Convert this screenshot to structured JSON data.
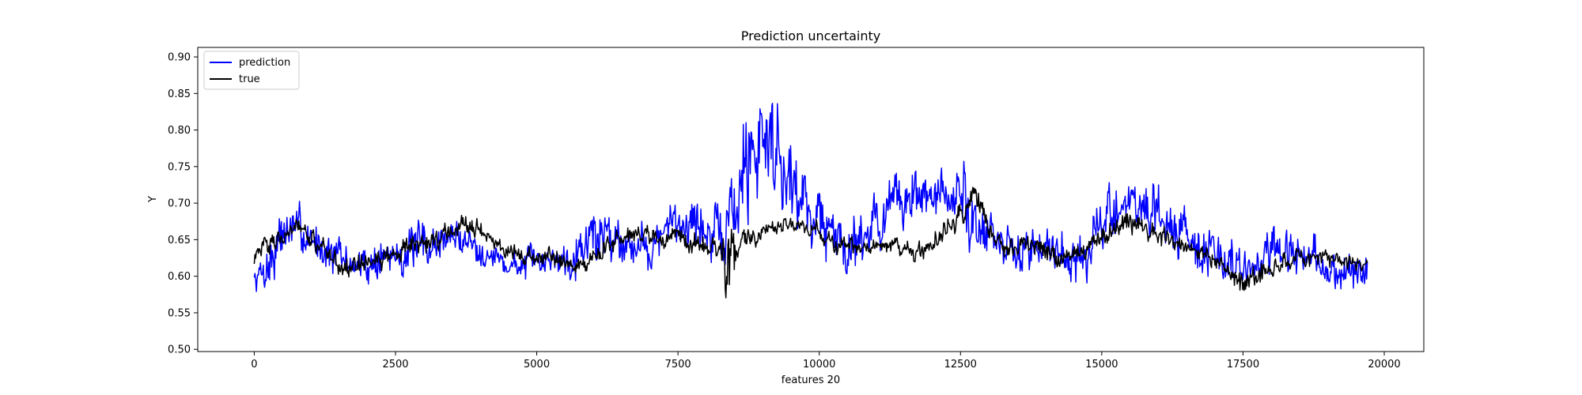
{
  "chart_data": {
    "type": "line",
    "title": "Prediction uncertainty",
    "xlabel": "features 20",
    "ylabel": "Y",
    "xlim": [
      -1000,
      20700
    ],
    "ylim": [
      0.497,
      0.913
    ],
    "xticks": [
      0,
      2500,
      5000,
      7500,
      10000,
      12500,
      15000,
      17500,
      20000
    ],
    "xtick_labels": [
      "0",
      "2500",
      "5000",
      "7500",
      "10000",
      "12500",
      "15000",
      "17500",
      "20000"
    ],
    "yticks": [
      0.5,
      0.55,
      0.6,
      0.65,
      0.7,
      0.75,
      0.8,
      0.85,
      0.9
    ],
    "ytick_labels": [
      "0.50",
      "0.55",
      "0.60",
      "0.65",
      "0.70",
      "0.75",
      "0.80",
      "0.85",
      "0.90"
    ],
    "grid": false,
    "legend_position": "top-left",
    "series": [
      {
        "name": "prediction",
        "color": "#0000ff",
        "x": [
          0,
          250,
          500,
          750,
          1000,
          1250,
          1500,
          1750,
          2000,
          2250,
          2500,
          2750,
          3000,
          3250,
          3500,
          3750,
          4000,
          4250,
          4500,
          4750,
          5000,
          5250,
          5500,
          5750,
          6000,
          6250,
          6500,
          6750,
          7000,
          7250,
          7500,
          7750,
          8000,
          8250,
          8500,
          8750,
          9000,
          9250,
          9500,
          9750,
          10000,
          10250,
          10500,
          10750,
          11000,
          11250,
          11500,
          11750,
          12000,
          12250,
          12500,
          12750,
          13000,
          13250,
          13500,
          13750,
          14000,
          14250,
          14500,
          14750,
          15000,
          15250,
          15500,
          15750,
          16000,
          16250,
          16500,
          16750,
          17000,
          17250,
          17500,
          17750,
          18000,
          18250,
          18500,
          18750,
          19000,
          19250,
          19500,
          19700
        ],
        "y": [
          0.595,
          0.615,
          0.66,
          0.665,
          0.65,
          0.64,
          0.625,
          0.615,
          0.615,
          0.625,
          0.63,
          0.635,
          0.64,
          0.645,
          0.655,
          0.65,
          0.64,
          0.625,
          0.615,
          0.615,
          0.62,
          0.625,
          0.625,
          0.64,
          0.655,
          0.66,
          0.65,
          0.645,
          0.64,
          0.655,
          0.675,
          0.68,
          0.66,
          0.645,
          0.695,
          0.76,
          0.8,
          0.78,
          0.73,
          0.7,
          0.68,
          0.655,
          0.645,
          0.66,
          0.675,
          0.69,
          0.705,
          0.71,
          0.715,
          0.7,
          0.71,
          0.68,
          0.655,
          0.64,
          0.63,
          0.64,
          0.645,
          0.64,
          0.62,
          0.625,
          0.67,
          0.695,
          0.7,
          0.695,
          0.675,
          0.67,
          0.665,
          0.64,
          0.625,
          0.62,
          0.605,
          0.615,
          0.63,
          0.63,
          0.625,
          0.62,
          0.61,
          0.605,
          0.6,
          0.605
        ],
        "amp": [
          0.015,
          0.03,
          0.03,
          0.025,
          0.025,
          0.025,
          0.025,
          0.02,
          0.02,
          0.025,
          0.025,
          0.025,
          0.03,
          0.025,
          0.02,
          0.02,
          0.02,
          0.02,
          0.018,
          0.018,
          0.018,
          0.018,
          0.025,
          0.03,
          0.035,
          0.03,
          0.025,
          0.025,
          0.025,
          0.03,
          0.035,
          0.03,
          0.03,
          0.035,
          0.07,
          0.08,
          0.07,
          0.06,
          0.05,
          0.045,
          0.04,
          0.035,
          0.035,
          0.035,
          0.035,
          0.035,
          0.035,
          0.035,
          0.03,
          0.03,
          0.05,
          0.04,
          0.03,
          0.025,
          0.025,
          0.025,
          0.025,
          0.025,
          0.025,
          0.03,
          0.035,
          0.03,
          0.03,
          0.03,
          0.03,
          0.03,
          0.03,
          0.03,
          0.03,
          0.03,
          0.025,
          0.025,
          0.025,
          0.025,
          0.025,
          0.025,
          0.025,
          0.025,
          0.025,
          0.02
        ]
      },
      {
        "name": "true",
        "color": "#000000",
        "x": [
          0,
          250,
          500,
          750,
          1000,
          1250,
          1500,
          1750,
          2000,
          2250,
          2500,
          2750,
          3000,
          3250,
          3500,
          3750,
          4000,
          4250,
          4500,
          4750,
          5000,
          5250,
          5500,
          5750,
          6000,
          6250,
          6500,
          6750,
          7000,
          7250,
          7500,
          7750,
          8000,
          8250,
          8400,
          8600,
          9000,
          9250,
          9500,
          9750,
          10000,
          10250,
          10500,
          10750,
          11000,
          11250,
          11500,
          11750,
          12000,
          12250,
          12500,
          12750,
          13000,
          13250,
          13500,
          13750,
          14000,
          14250,
          14500,
          14750,
          15000,
          15250,
          15500,
          15750,
          16000,
          16250,
          16500,
          16750,
          17000,
          17250,
          17500,
          17750,
          18000,
          18250,
          18500,
          18750,
          19000,
          19250,
          19500,
          19700
        ],
        "y": [
          0.625,
          0.645,
          0.66,
          0.665,
          0.65,
          0.635,
          0.62,
          0.61,
          0.615,
          0.625,
          0.63,
          0.64,
          0.645,
          0.65,
          0.665,
          0.675,
          0.665,
          0.645,
          0.635,
          0.63,
          0.625,
          0.63,
          0.62,
          0.615,
          0.625,
          0.64,
          0.645,
          0.66,
          0.655,
          0.645,
          0.655,
          0.645,
          0.64,
          0.64,
          0.61,
          0.65,
          0.66,
          0.665,
          0.67,
          0.67,
          0.66,
          0.645,
          0.64,
          0.635,
          0.64,
          0.645,
          0.635,
          0.63,
          0.64,
          0.66,
          0.685,
          0.72,
          0.66,
          0.645,
          0.64,
          0.645,
          0.635,
          0.625,
          0.63,
          0.64,
          0.655,
          0.665,
          0.675,
          0.665,
          0.655,
          0.645,
          0.645,
          0.635,
          0.625,
          0.6,
          0.59,
          0.6,
          0.61,
          0.62,
          0.625,
          0.625,
          0.625,
          0.62,
          0.62,
          0.62
        ],
        "amp": [
          0.01,
          0.012,
          0.012,
          0.012,
          0.012,
          0.012,
          0.012,
          0.012,
          0.012,
          0.012,
          0.012,
          0.012,
          0.012,
          0.012,
          0.012,
          0.012,
          0.012,
          0.01,
          0.01,
          0.01,
          0.01,
          0.01,
          0.01,
          0.01,
          0.01,
          0.012,
          0.012,
          0.012,
          0.012,
          0.012,
          0.012,
          0.012,
          0.012,
          0.015,
          0.06,
          0.015,
          0.01,
          0.01,
          0.01,
          0.01,
          0.01,
          0.01,
          0.01,
          0.01,
          0.01,
          0.01,
          0.01,
          0.01,
          0.012,
          0.015,
          0.02,
          0.015,
          0.012,
          0.012,
          0.012,
          0.012,
          0.012,
          0.012,
          0.012,
          0.012,
          0.012,
          0.012,
          0.012,
          0.012,
          0.012,
          0.012,
          0.012,
          0.012,
          0.012,
          0.012,
          0.015,
          0.015,
          0.012,
          0.012,
          0.01,
          0.01,
          0.01,
          0.01,
          0.01,
          0.01
        ]
      }
    ]
  }
}
